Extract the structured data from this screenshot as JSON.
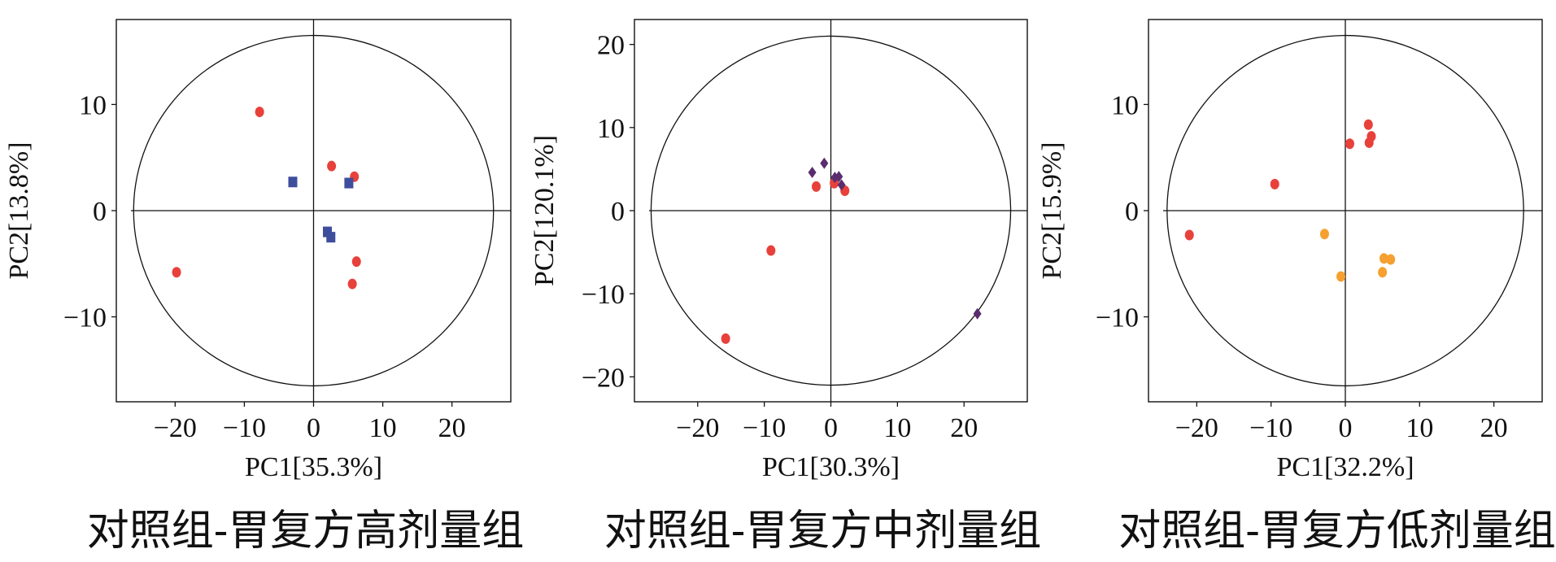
{
  "chart_data": [
    {
      "type": "scatter",
      "title": "",
      "caption": "对照组-胃复方高剂量组",
      "xlabel": "PC1[35.3%]",
      "ylabel": "PC2[13.8%]",
      "xlim": [
        -28.5,
        28.5
      ],
      "ylim": [
        -18,
        18
      ],
      "xticks": [
        -20,
        -10,
        0,
        10,
        20
      ],
      "yticks": [
        -10,
        0,
        10
      ],
      "ellipse_radius": [
        26,
        16.5
      ],
      "grid": false,
      "series": [
        {
          "marker": "circle",
          "color": "#e8413b",
          "points": [
            [
              -7.8,
              9.3
            ],
            [
              2.6,
              4.2
            ],
            [
              5.9,
              3.2
            ],
            [
              -19.8,
              -5.8
            ],
            [
              6.2,
              -4.8
            ],
            [
              5.6,
              -6.9
            ]
          ]
        },
        {
          "marker": "square",
          "color": "#3e4d9c",
          "points": [
            [
              -3.0,
              2.7
            ],
            [
              5.1,
              2.6
            ],
            [
              2.0,
              -2.0
            ],
            [
              2.5,
              -2.5
            ]
          ]
        }
      ]
    },
    {
      "type": "scatter",
      "title": "",
      "caption": "对照组-胃复方中剂量组",
      "xlabel": "PC1[30.3%]",
      "ylabel": "PC2[120.1%]",
      "xlim": [
        -29.5,
        29.5
      ],
      "ylim": [
        -23,
        23
      ],
      "xticks": [
        -20,
        -10,
        0,
        10,
        20
      ],
      "yticks": [
        -20,
        -10,
        0,
        10,
        20
      ],
      "ellipse_radius": [
        27,
        21
      ],
      "grid": false,
      "series": [
        {
          "marker": "circle",
          "color": "#e8413b",
          "points": [
            [
              -2.2,
              2.9
            ],
            [
              0.5,
              3.3
            ],
            [
              2.1,
              2.4
            ],
            [
              -9.0,
              -4.8
            ],
            [
              -15.8,
              -15.4
            ]
          ]
        },
        {
          "marker": "diamond",
          "color": "#5a2d6e",
          "points": [
            [
              -1.0,
              5.7
            ],
            [
              -2.8,
              4.6
            ],
            [
              0.6,
              4.0
            ],
            [
              1.2,
              4.1
            ],
            [
              1.6,
              3.1
            ],
            [
              22.0,
              -12.4
            ]
          ]
        }
      ]
    },
    {
      "type": "scatter",
      "title": "",
      "caption": "对照组-胃复方低剂量组",
      "xlabel": "PC1[32.2%]",
      "ylabel": "PC2[15.9%]",
      "xlim": [
        -26.5,
        26.5
      ],
      "ylim": [
        -18,
        18
      ],
      "xticks": [
        -20,
        -10,
        0,
        10,
        20
      ],
      "yticks": [
        -10,
        0,
        10
      ],
      "ellipse_radius": [
        24,
        16.5
      ],
      "grid": false,
      "series": [
        {
          "marker": "circle",
          "color": "#e8413b",
          "points": [
            [
              3.1,
              8.1
            ],
            [
              3.5,
              7.0
            ],
            [
              3.2,
              6.4
            ],
            [
              0.6,
              6.3
            ],
            [
              -9.5,
              2.5
            ],
            [
              -21.0,
              -2.3
            ]
          ]
        },
        {
          "marker": "circle",
          "color": "#f5a030",
          "points": [
            [
              -2.8,
              -2.2
            ],
            [
              5.2,
              -4.5
            ],
            [
              6.1,
              -4.6
            ],
            [
              5.0,
              -5.8
            ],
            [
              -0.6,
              -6.2
            ]
          ]
        }
      ]
    }
  ]
}
